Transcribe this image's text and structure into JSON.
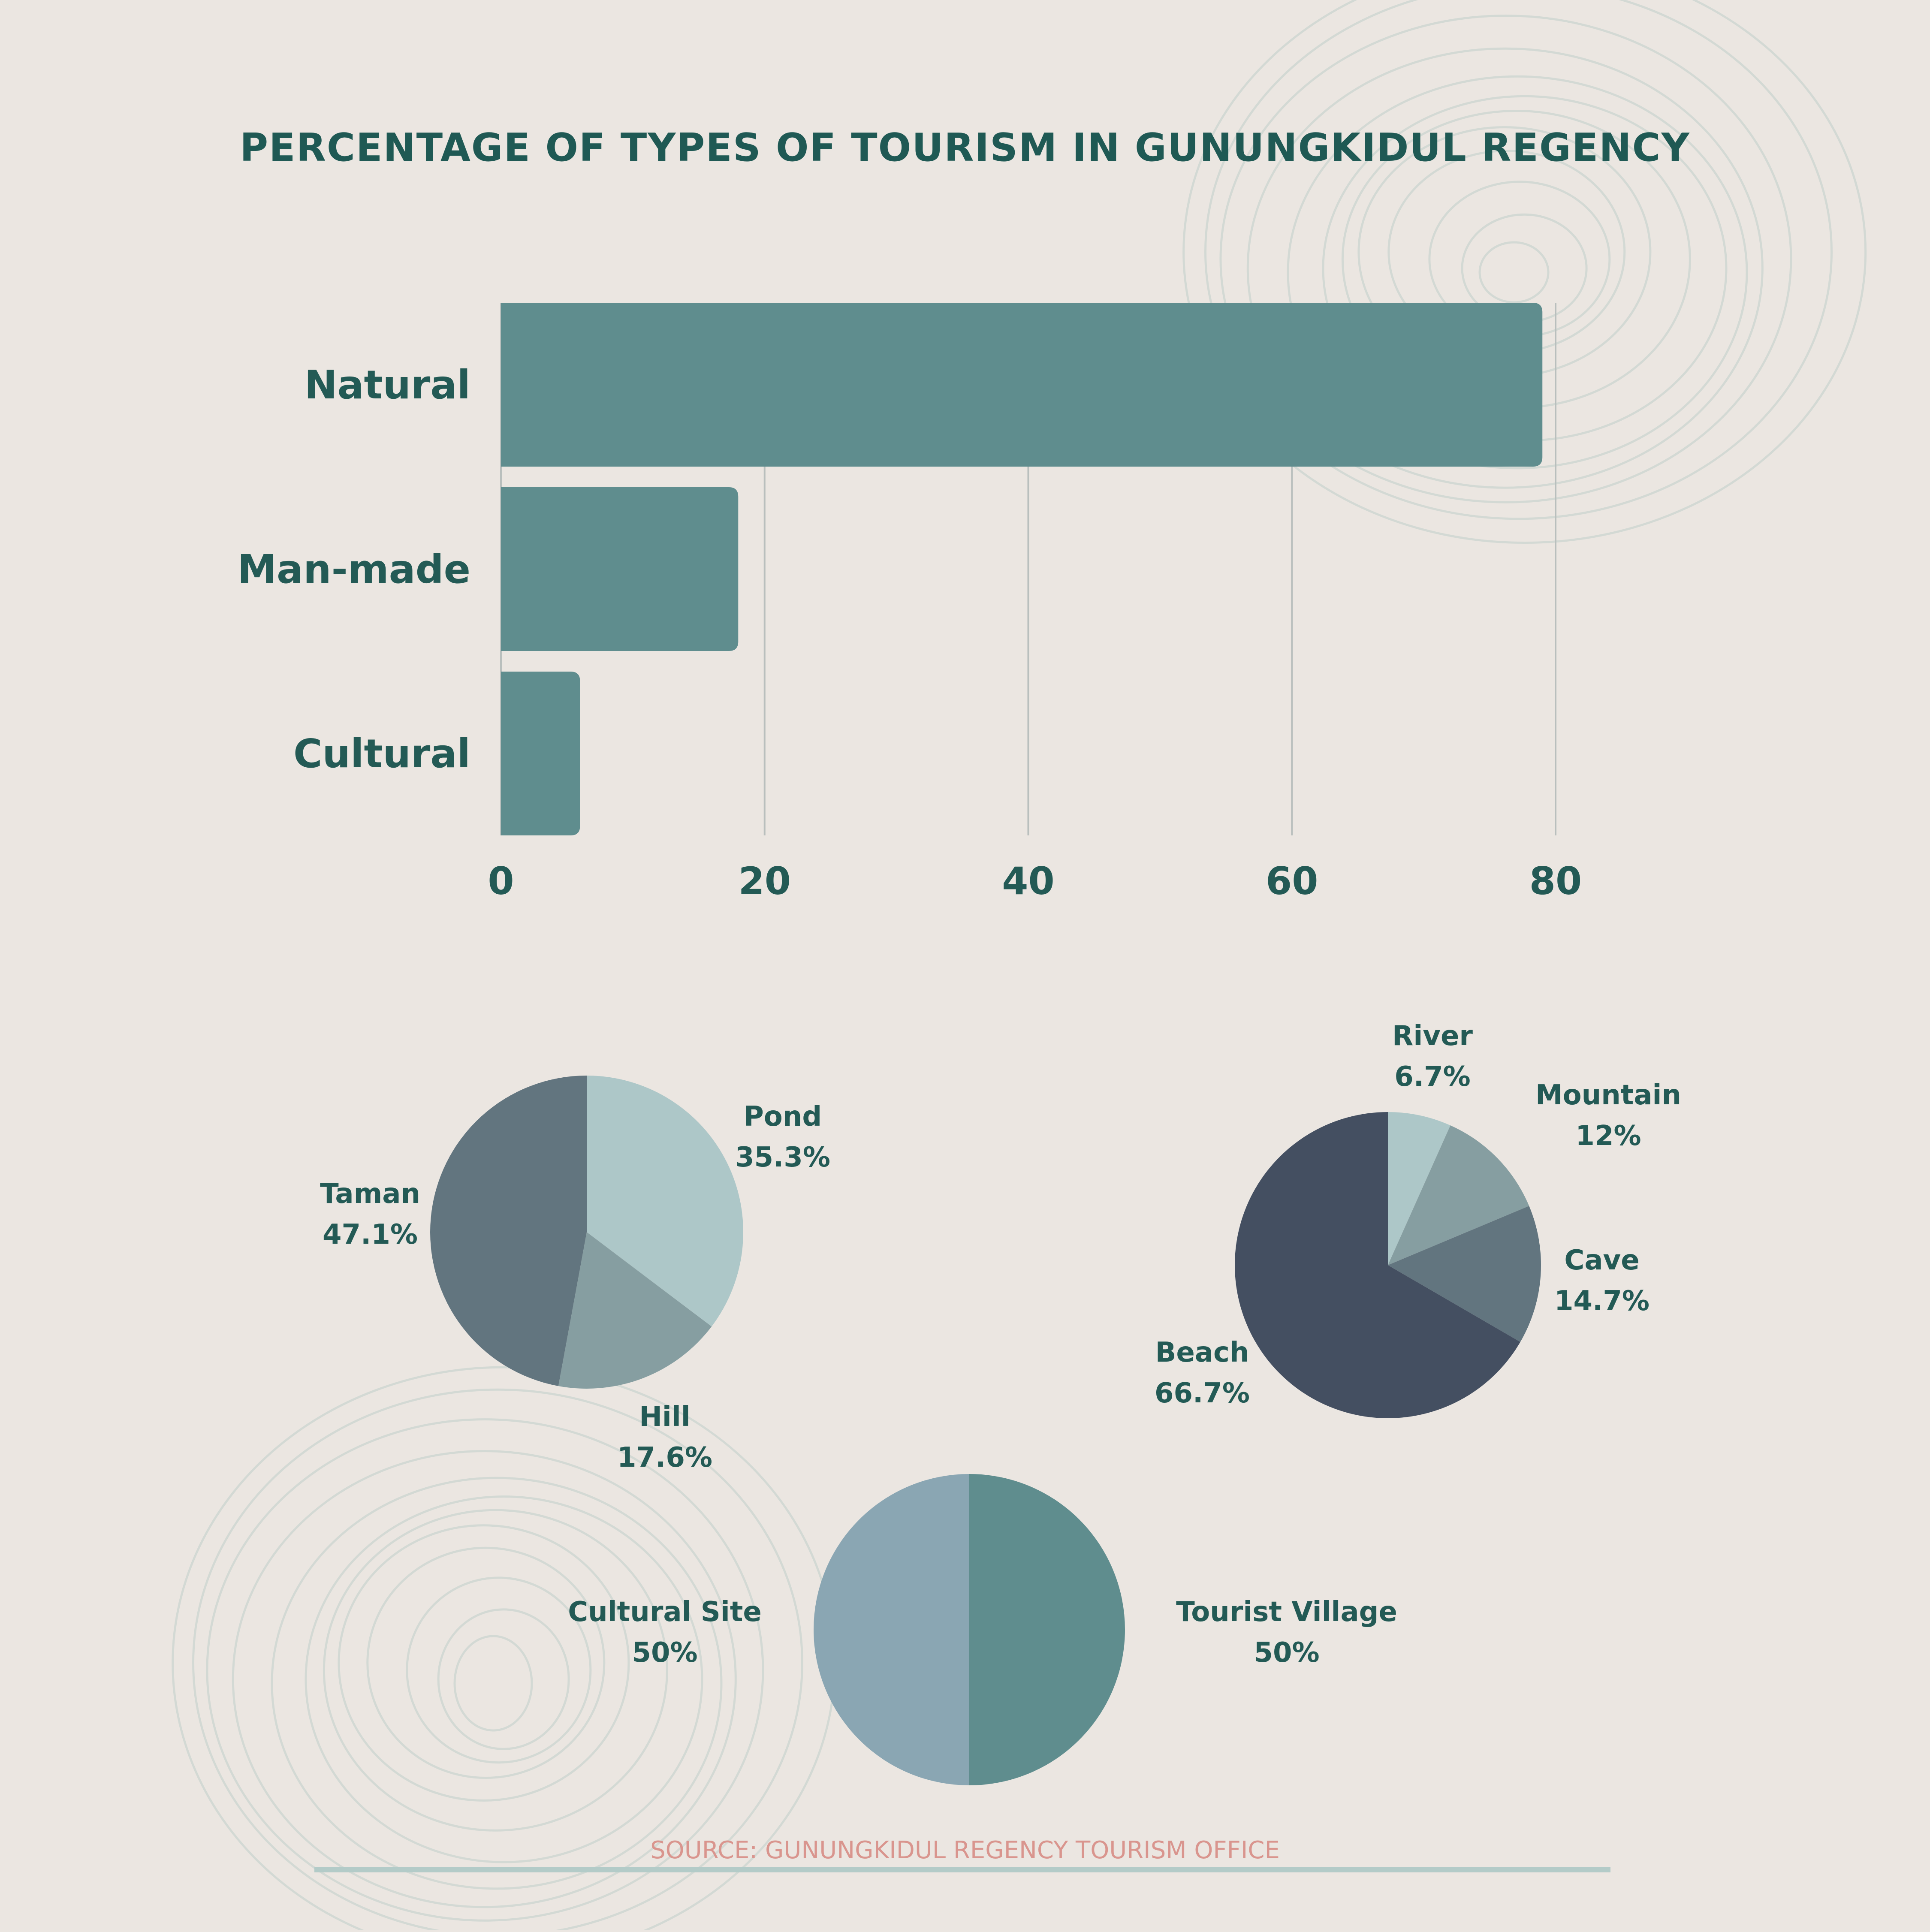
{
  "colors": {
    "background": "#ebe6e1",
    "title": "#1f5954",
    "label": "#235a55",
    "bar": "#5f8d8e",
    "grid": "#b9bfbd",
    "source": "#d9958e",
    "source_line": "#b3cbc8",
    "contour": "#c9d3cf"
  },
  "title": "PERCENTAGE OF TYPES OF TOURISM IN GUNUNGKIDUL REGENCY",
  "source": "SOURCE: GUNUNGKIDUL REGENCY TOURISM OFFICE",
  "chart_data": [
    {
      "type": "bar",
      "orientation": "horizontal",
      "categories": [
        "Natural",
        "Man-made",
        "Cultural"
      ],
      "values": [
        79,
        18,
        6
      ],
      "xlim": [
        0,
        80
      ],
      "xticks": [
        "0",
        "20",
        "40",
        "60",
        "80"
      ],
      "grid": true
    },
    {
      "type": "pie",
      "slices": [
        {
          "label": "Pond",
          "value_label": "35.3%",
          "value": 35.3,
          "color": "#adc7c8"
        },
        {
          "label": "Hill",
          "value_label": "17.6%",
          "value": 17.6,
          "color": "#869ea1"
        },
        {
          "label": "Taman",
          "value_label": "47.1%",
          "value": 47.1,
          "color": "#62757f"
        }
      ]
    },
    {
      "type": "pie",
      "slices": [
        {
          "label": "River",
          "value_label": "6.7%",
          "value": 6.7,
          "color": "#adc7c8"
        },
        {
          "label": "Mountain",
          "value_label": "12%",
          "value": 12,
          "color": "#869ea1"
        },
        {
          "label": "Cave",
          "value_label": "14.7%",
          "value": 14.7,
          "color": "#62757f"
        },
        {
          "label": "Beach",
          "value_label": "66.7%",
          "value": 66.7,
          "color": "#444f61"
        }
      ]
    },
    {
      "type": "pie",
      "slices": [
        {
          "label": "Tourist Village",
          "value_label": "50%",
          "value": 50,
          "color": "#5f8d8e"
        },
        {
          "label": "Cultural Site",
          "value_label": "50%",
          "value": 50,
          "color": "#8aa6b3"
        }
      ]
    }
  ]
}
